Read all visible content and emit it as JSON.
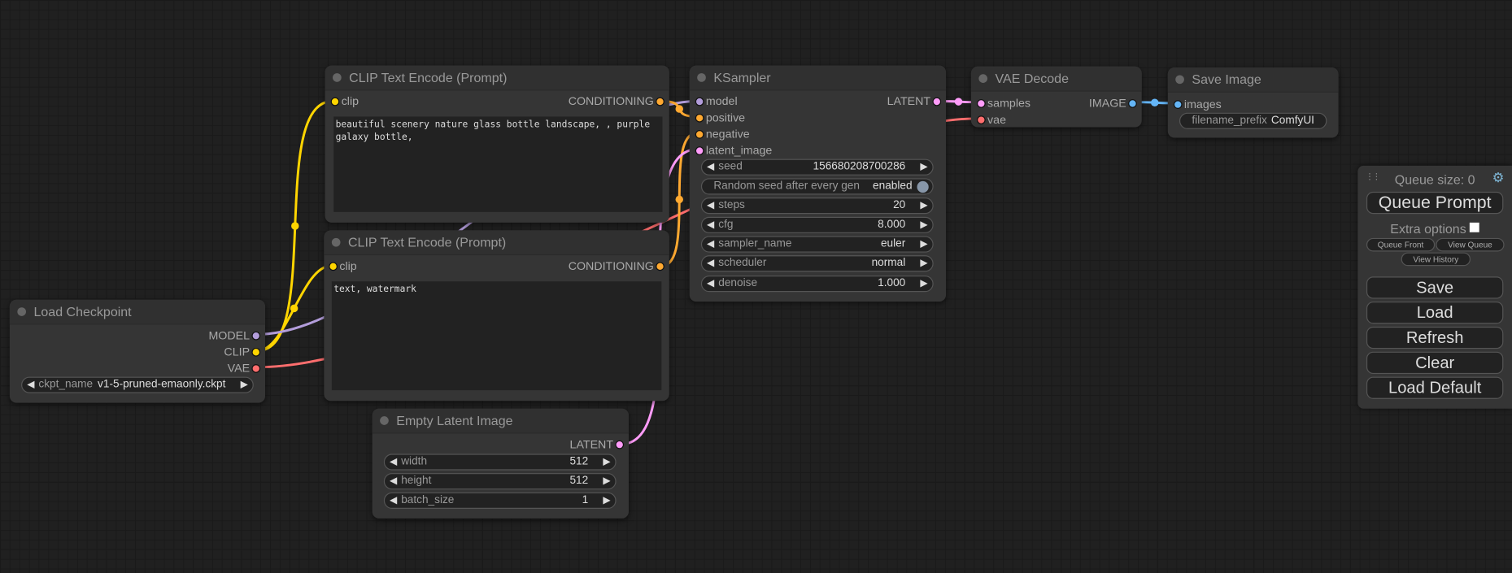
{
  "colors": {
    "clip": "#ffd500",
    "model": "#b39ddb",
    "vae": "#ff6e6e",
    "conditioning": "#ffa931",
    "latent": "#ff9cf9",
    "image": "#64b5f6"
  },
  "nodes": {
    "clip_pos": {
      "title": "CLIP Text Encode (Prompt)",
      "input": "clip",
      "output": "CONDITIONING",
      "text": "beautiful scenery nature glass bottle landscape, , purple galaxy bottle,"
    },
    "clip_neg": {
      "title": "CLIP Text Encode (Prompt)",
      "input": "clip",
      "output": "CONDITIONING",
      "text": "text, watermark"
    },
    "load_checkpoint": {
      "title": "Load Checkpoint",
      "outputs": [
        "MODEL",
        "CLIP",
        "VAE"
      ],
      "ckpt_label": "ckpt_name",
      "ckpt_value": "v1-5-pruned-emaonly.ckpt"
    },
    "empty_latent": {
      "title": "Empty Latent Image",
      "output": "LATENT",
      "widgets": [
        {
          "label": "width",
          "value": "512"
        },
        {
          "label": "height",
          "value": "512"
        },
        {
          "label": "batch_size",
          "value": "1"
        }
      ]
    },
    "ksampler": {
      "title": "KSampler",
      "inputs": [
        "model",
        "positive",
        "negative",
        "latent_image"
      ],
      "output": "LATENT",
      "seed": {
        "label": "seed",
        "value": "156680208700286"
      },
      "random_seed": {
        "label": "Random seed after every gen",
        "value": "enabled"
      },
      "widgets": [
        {
          "label": "steps",
          "value": "20"
        },
        {
          "label": "cfg",
          "value": "8.000"
        },
        {
          "label": "sampler_name",
          "value": "euler"
        },
        {
          "label": "scheduler",
          "value": "normal"
        },
        {
          "label": "denoise",
          "value": "1.000"
        }
      ]
    },
    "vae_decode": {
      "title": "VAE Decode",
      "inputs": [
        "samples",
        "vae"
      ],
      "output": "IMAGE"
    },
    "save_image": {
      "title": "Save Image",
      "input": "images",
      "prefix_label": "filename_prefix",
      "prefix_value": "ComfyUI"
    }
  },
  "panel": {
    "queue_size": "Queue size: 0",
    "queue_prompt": "Queue Prompt",
    "extra_options": "Extra options",
    "queue_front": "Queue Front",
    "view_queue": "View Queue",
    "view_history": "View History",
    "save": "Save",
    "load": "Load",
    "refresh": "Refresh",
    "clear": "Clear",
    "load_default": "Load Default",
    "drag_icon": "⋮⋮",
    "gear_icon": "⚙"
  }
}
